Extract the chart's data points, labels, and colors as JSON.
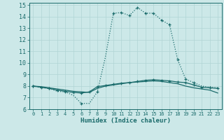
{
  "xlabel": "Humidex (Indice chaleur)",
  "bg_color": "#cce8e8",
  "grid_color": "#b0d4d4",
  "line_color": "#1a6b6b",
  "xlim": [
    -0.5,
    23.5
  ],
  "ylim": [
    6,
    15.2
  ],
  "xticks": [
    0,
    1,
    2,
    3,
    4,
    5,
    6,
    7,
    8,
    9,
    10,
    11,
    12,
    13,
    14,
    15,
    16,
    17,
    18,
    19,
    20,
    21,
    22,
    23
  ],
  "yticks": [
    6,
    7,
    8,
    9,
    10,
    11,
    12,
    13,
    14,
    15
  ],
  "line1_x": [
    0,
    1,
    2,
    3,
    4,
    5,
    6,
    7,
    8,
    9,
    10,
    11,
    12,
    13,
    14,
    15,
    16,
    17,
    18,
    19,
    20,
    21,
    22,
    23
  ],
  "line1_y": [
    8.0,
    7.85,
    7.8,
    7.55,
    7.5,
    7.2,
    6.5,
    6.5,
    7.5,
    10.5,
    14.3,
    14.35,
    14.1,
    14.8,
    14.3,
    14.3,
    13.7,
    13.3,
    10.3,
    8.6,
    8.3,
    8.0,
    7.9,
    7.85
  ],
  "line2_x": [
    0,
    1,
    2,
    3,
    4,
    5,
    6,
    7,
    8,
    9,
    10,
    11,
    12,
    13,
    14,
    15,
    16,
    17,
    18,
    19,
    20,
    21,
    22,
    23
  ],
  "line2_y": [
    8.0,
    7.9,
    7.8,
    7.65,
    7.55,
    7.45,
    7.4,
    7.5,
    7.95,
    8.05,
    8.15,
    8.25,
    8.3,
    8.4,
    8.5,
    8.55,
    8.5,
    8.45,
    8.35,
    8.3,
    8.1,
    7.9,
    7.85,
    7.8
  ],
  "line3_x": [
    0,
    1,
    2,
    3,
    4,
    5,
    6,
    7,
    8,
    9,
    10,
    11,
    12,
    13,
    14,
    15,
    16,
    17,
    18,
    19,
    20,
    21,
    22,
    23
  ],
  "line3_y": [
    8.0,
    7.95,
    7.85,
    7.75,
    7.65,
    7.55,
    7.5,
    7.45,
    7.8,
    8.0,
    8.1,
    8.2,
    8.3,
    8.35,
    8.4,
    8.45,
    8.4,
    8.3,
    8.2,
    8.0,
    7.85,
    7.75,
    7.65,
    7.4
  ]
}
